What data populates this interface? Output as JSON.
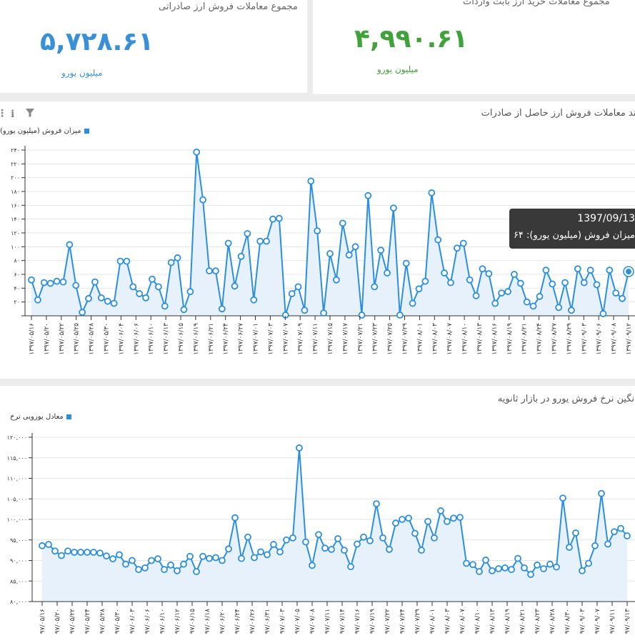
{
  "stats": {
    "export": {
      "title": "مجموع معاملات فروش ارز صادراتی",
      "value": "۵,۷۲۸.۶۱",
      "unit": "میلیون یورو",
      "color": "#3a8fd9"
    },
    "import": {
      "title": "مجموع معاملات خرید ارز بابت واردات",
      "value": "۴,۹۹۰.۶۱",
      "unit": "میلیون یورو",
      "color": "#3fa33a"
    }
  },
  "chart1_panel": {
    "title": "روند معاملات فروش ارز حاصل از صادرات",
    "legend": "میزان فروش (میلیون یورو)"
  },
  "chart2_panel": {
    "title": "میانگین نرخ فروش یورو در بازار ثانویه",
    "legend": "معادل یورویی نرخ"
  },
  "tooltip": {
    "date": "1397/09/13",
    "label": "میزان فروش (میلیون یورو): ۶۴"
  },
  "chart_data": [
    {
      "type": "area",
      "title": "روند معاملات فروش ارز حاصل از صادرات",
      "series_name": "میزان فروش (میلیون یورو)",
      "color": "#2b8fe0",
      "ylim": [
        0,
        240
      ],
      "yticks": [
        "۲۰",
        "۴۰",
        "۶۰",
        "۸۰",
        "۱۰۰",
        "۱۲۰",
        "۱۴۰",
        "۱۶۰",
        "۱۸۰",
        "۲۰۰",
        "۲۲۰",
        "۲۴۰"
      ],
      "ytick_values": [
        20,
        40,
        60,
        80,
        100,
        120,
        140,
        160,
        180,
        200,
        220,
        240
      ],
      "xticks": [
        "۱۳۹۷/۰۵/۱۶",
        "۱۳۹۷/۰۵/۲۰",
        "۱۳۹۷/۰۵/۲۲",
        "۱۳۹۷/۰۵/۲۵",
        "۱۳۹۷/۰۵/۲۸",
        "۱۳۹۷/۰۵/۳۰",
        "۱۳۹۷/۰۶/۰۴",
        "۱۳۹۷/۰۶/۰۶",
        "۱۳۹۷/۰۶/۱۰",
        "۱۳۹۷/۰۶/۱۳",
        "۱۳۹۷/۰۶/۱۵",
        "۱۳۹۷/۰۶/۱۹",
        "۱۳۹۷/۰۶/۲۱",
        "۱۳۹۷/۰۶/۲۴",
        "۱۳۹۷/۰۶/۲۷",
        "۱۳۹۷/۰۷/۰۱",
        "۱۳۹۷/۰۷/۰۳",
        "۱۳۹۷/۰۷/۰۷",
        "۱۳۹۷/۰۷/۰۹",
        "۱۳۹۷/۰۷/۱۱",
        "۱۳۹۷/۰۷/۱۵",
        "۱۳۹۷/۰۷/۱۷",
        "۱۳۹۷/۰۷/۲۱",
        "۱۳۹۷/۰۷/۲۳",
        "۱۳۹۷/۰۷/۲۵",
        "۱۳۹۷/۰۷/۲۹",
        "۱۳۹۷/۰۸/۰۱",
        "۱۳۹۷/۰۸/۰۳",
        "۱۳۹۷/۰۸/۰۷",
        "۱۳۹۷/۰۸/۱۰",
        "۱۳۹۷/۰۸/۱۳",
        "۱۳۹۷/۰۸/۱۶",
        "۱۳۹۷/۰۸/۱۹",
        "۱۳۹۷/۰۸/۲۱",
        "۱۳۹۷/۰۸/۲۴",
        "۱۳۹۷/۰۸/۲۷",
        "۱۳۹۷/۰۸/۲۹",
        "۱۳۹۷/۰۹/۰۳",
        "۱۳۹۷/۰۹/۰۶",
        "۱۳۹۷/۰۹/۰۸",
        "۱۳۹۷/۰۹/۱۲"
      ],
      "values": [
        52,
        23,
        48,
        47,
        50,
        49,
        103,
        44,
        5,
        25,
        49,
        26,
        21,
        18,
        79,
        79,
        42,
        32,
        26,
        53,
        42,
        14,
        77,
        84,
        9,
        35,
        237,
        168,
        65,
        65,
        10,
        105,
        43,
        86,
        119,
        23,
        108,
        108,
        140,
        141,
        1,
        32,
        42,
        8,
        195,
        123,
        4,
        90,
        52,
        134,
        88,
        100,
        1,
        174,
        42,
        95,
        62,
        156,
        1,
        76,
        18,
        39,
        50,
        178,
        110,
        62,
        48,
        98,
        105,
        52,
        29,
        68,
        61,
        18,
        33,
        35,
        60,
        47,
        20,
        14,
        28,
        66,
        46,
        12,
        48,
        8,
        68,
        48,
        66,
        45,
        3,
        66,
        33,
        25,
        64
      ],
      "highlight_index": 94
    },
    {
      "type": "area",
      "title": "میانگین نرخ فروش یورو در بازار ثانویه",
      "series_name": "معادل یورویی نرخ",
      "color": "#2b8fe0",
      "ylim": [
        80000,
        120000
      ],
      "yticks": [
        "۸۰,۰۰۰",
        "۸۵,۰۰۰",
        "۹۰,۰۰۰",
        "۹۵,۰۰۰",
        "۱۰۰,۰۰۰",
        "۱۰۵,۰۰۰",
        "۱۱۰,۰۰۰",
        "۱۱۵,۰۰۰",
        "۱۲۰,۰۰۰"
      ],
      "ytick_values": [
        80000,
        85000,
        90000,
        95000,
        100000,
        105000,
        110000,
        115000,
        120000
      ],
      "xticks": [
        "۹۷/۰۵/۱۶",
        "۹۷/۰۵/۲۰",
        "۹۷/۰۵/۲۲",
        "۹۷/۰۵/۲۴",
        "۹۷/۰۵/۲۸",
        "۹۷/۰۵/۳۰",
        "۹۷/۰۶/۰۳",
        "۹۷/۰۶/۰۶",
        "۹۷/۰۶/۱۰",
        "۹۷/۰۶/۱۲",
        "۹۷/۰۶/۱۵",
        "۹۷/۰۶/۱۸",
        "۹۷/۰۶/۲۰",
        "۹۷/۰۶/۲۴",
        "۹۷/۰۶/۲۶",
        "۹۷/۰۶/۳۱",
        "۹۷/۰۷/۰۳",
        "۹۷/۰۷/۰۵",
        "۹۷/۰۷/۰۸",
        "۹۷/۰۷/۱۱",
        "۹۷/۰۷/۱۴",
        "۹۷/۰۷/۱۶",
        "۹۷/۰۷/۱۹",
        "۹۷/۰۷/۲۲",
        "۹۷/۰۷/۲۴",
        "۹۷/۰۷/۲۹",
        "۹۷/۰۸/۰۱",
        "۹۷/۰۸/۰۳",
        "۹۷/۰۸/۰۷",
        "۹۷/۰۸/۱۰",
        "۹۷/۰۸/۱۳",
        "۹۷/۰۸/۱۹",
        "۹۷/۰۸/۲۱",
        "۹۷/۰۸/۲۳",
        "۹۷/۰۸/۲۸",
        "۹۷/۰۸/۳۰",
        "۹۷/۰۹/۰۳",
        "۹۷/۰۹/۰۷",
        "۹۷/۰۹/۱۱",
        "۹۷/۰۹/۱۳"
      ],
      "values": [
        93600,
        93900,
        92300,
        91200,
        92300,
        92000,
        92000,
        92000,
        92000,
        91800,
        91100,
        90400,
        91400,
        89100,
        90000,
        87800,
        88200,
        90000,
        90400,
        87800,
        88900,
        87500,
        89100,
        91000,
        87300,
        91000,
        90500,
        90700,
        90000,
        92800,
        100400,
        90500,
        95700,
        90700,
        92100,
        91400,
        93900,
        92100,
        95000,
        95500,
        117400,
        94500,
        88800,
        96300,
        93000,
        92700,
        95300,
        92500,
        88500,
        94000,
        95700,
        94800,
        103800,
        95500,
        92700,
        99100,
        100000,
        100300,
        96600,
        92500,
        99500,
        95500,
        102100,
        99500,
        100300,
        100500,
        89300,
        89000,
        87300,
        90100,
        87500,
        88000,
        88200,
        87800,
        90500,
        88200,
        86600,
        88900,
        88000,
        89100,
        88400,
        105200,
        93200,
        96700,
        87500,
        89300,
        93600,
        106300,
        94000,
        97000,
        97800,
        96000
      ]
    }
  ]
}
